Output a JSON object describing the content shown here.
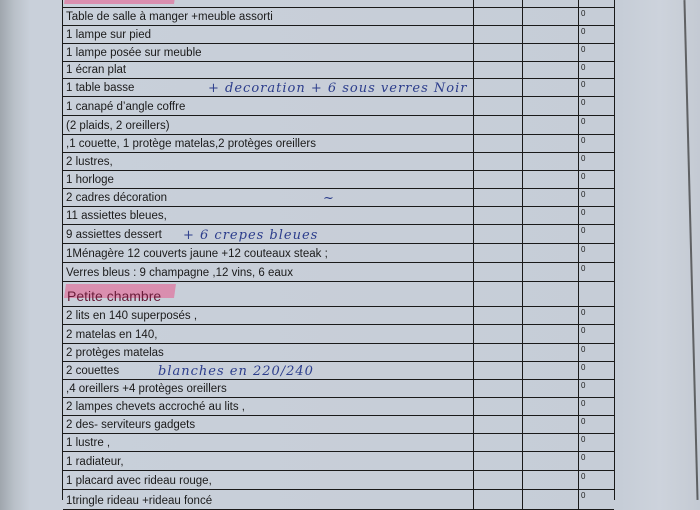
{
  "section_heading_top": "",
  "rows": [
    {
      "text": "Table de salle à manger +meuble assorti",
      "value": "0"
    },
    {
      "text": "1 lampe sur pied",
      "value": "0"
    },
    {
      "text": "1 lampe posée sur meuble",
      "value": "0"
    },
    {
      "text": "1 écran plat",
      "value": "0"
    },
    {
      "text": "1 table basse",
      "value": "0",
      "note": "+ decoration + 6 sous verres Noir"
    },
    {
      "text": "1 canapé d’angle coffre",
      "value": "0"
    },
    {
      "text": "(2 plaids, 2 oreillers)",
      "value": "0"
    },
    {
      "text": ",1 couette, 1 protège matelas,2 protèges oreillers",
      "value": "0"
    },
    {
      "text": "2 lustres,",
      "value": "0"
    },
    {
      "text": "1 horloge",
      "value": "0"
    },
    {
      "text": "2 cadres décoration",
      "value": "0",
      "note": "~"
    },
    {
      "text": "11 assiettes bleues,",
      "value": "0"
    },
    {
      "text": "9 assiettes dessert",
      "value": "0",
      "note": "+ 6 crepes bleues"
    },
    {
      "text": "1Ménagère 12 couverts jaune +12 couteaux steak ;",
      "value": "0"
    },
    {
      "text": "Verres bleus : 9 champagne ,12 vins, 6 eaux",
      "value": "0"
    },
    {
      "heading": "Petite chambre"
    },
    {
      "text": "2 lits en 140 superposés ,",
      "value": "0"
    },
    {
      "text": "2 matelas en 140,",
      "value": "0"
    },
    {
      "text": "2 protèges matelas",
      "value": "0"
    },
    {
      "text": "2 couettes",
      "value": "0",
      "note": "blanches en 220/240"
    },
    {
      "text": ",4 oreillers +4 protèges oreillers",
      "value": "0"
    },
    {
      "text": "2 lampes chevets accroché au lits ,",
      "value": "0"
    },
    {
      "text": "2 des- serviteurs gadgets",
      "value": "0"
    },
    {
      "text": "1 lustre ,",
      "value": "0"
    },
    {
      "text": "1 radiateur,",
      "value": "0"
    },
    {
      "text": "1 placard avec rideau rouge,",
      "value": "0"
    },
    {
      "text": "1tringle rideau +rideau foncé",
      "value": "0"
    }
  ],
  "colors": {
    "highlight": "#e85a8c",
    "ink": "#2c3d8c",
    "paper": "#c6cdd7"
  }
}
